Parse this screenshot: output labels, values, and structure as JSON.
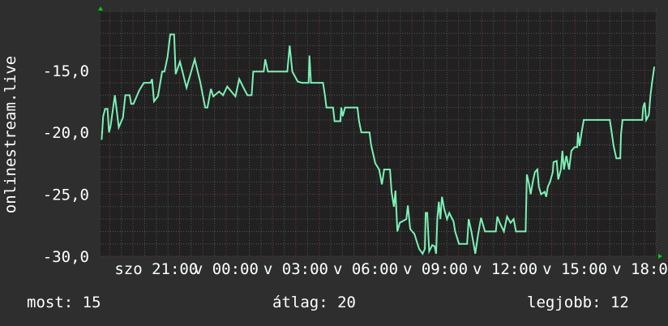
{
  "chart_data": {
    "type": "line",
    "title": "",
    "ylabel": "onlinestream.live",
    "xlabel": "",
    "ylim": [
      -30,
      -10.3
    ],
    "xlim": [
      "szo 18:36",
      "v 18:31"
    ],
    "yticks": [
      "-15,0",
      "-20,0",
      "-25,0",
      "-30,0"
    ],
    "ytick_values": [
      -15,
      -20,
      -25,
      -30
    ],
    "xticks": [
      "szo 21:00",
      "v 00:00",
      "v 03:00",
      "v 06:00",
      "v 09:00",
      "v 12:00",
      "v 15:00",
      "v 18:00"
    ],
    "grid": true,
    "colors": {
      "line": "#7cf0b6",
      "background": "#2e2e2e",
      "plot": "#212121",
      "grid_minor": "#555555",
      "grid_major": "#7a3a3a",
      "axis_arrow": "#00d000"
    },
    "series": [
      {
        "points": [
          [
            "szo 18:39",
            -20.6
          ],
          [
            "szo 18:43",
            -18.7
          ],
          [
            "szo 18:48",
            -18.1
          ],
          [
            "szo 18:54",
            -18.1
          ],
          [
            "szo 18:58",
            -20.0
          ],
          [
            "szo 19:02",
            -19.5
          ],
          [
            "szo 19:13",
            -17.0
          ],
          [
            "szo 19:23",
            -19.6
          ],
          [
            "szo 19:34",
            -18.8
          ],
          [
            "szo 19:40",
            -17.0
          ],
          [
            "szo 19:51",
            -17.0
          ],
          [
            "szo 19:55",
            -17.7
          ],
          [
            "szo 20:01",
            -17.7
          ],
          [
            "szo 20:16",
            -16.6
          ],
          [
            "szo 20:28",
            -16.0
          ],
          [
            "szo 20:45",
            -16.0
          ],
          [
            "szo 20:49",
            -15.7
          ],
          [
            "szo 20:54",
            -17.5
          ],
          [
            "szo 21:04",
            -17.1
          ],
          [
            "szo 21:15",
            -15.1
          ],
          [
            "szo 21:21",
            -15.1
          ],
          [
            "szo 21:29",
            -13.9
          ],
          [
            "szo 21:36",
            -12.1
          ],
          [
            "szo 21:46",
            -12.1
          ],
          [
            "szo 21:50",
            -15.3
          ],
          [
            "szo 22:01",
            -14.3
          ],
          [
            "szo 22:18",
            -16.4
          ],
          [
            "szo 22:39",
            -14.1
          ],
          [
            "szo 22:53",
            -15.9
          ],
          [
            "szo 23:06",
            -18.0
          ],
          [
            "szo 23:12",
            -18.0
          ],
          [
            "szo 23:21",
            -16.5
          ],
          [
            "szo 23:27",
            -17.1
          ],
          [
            "szo 23:42",
            -16.7
          ],
          [
            "szo 23:52",
            -17.0
          ],
          [
            "v 00:03",
            -16.3
          ],
          [
            "v 00:24",
            -17.1
          ],
          [
            "v 00:34",
            -15.7
          ],
          [
            "v 00:45",
            -16.4
          ],
          [
            "v 00:55",
            -17.0
          ],
          [
            "v 01:06",
            -17.0
          ],
          [
            "v 01:10",
            -15.1
          ],
          [
            "v 01:37",
            -15.1
          ],
          [
            "v 01:41",
            -14.1
          ],
          [
            "v 01:48",
            -15.1
          ],
          [
            "v 02:38",
            -15.1
          ],
          [
            "v 02:44",
            -13.0
          ],
          [
            "v 02:51",
            -15.1
          ],
          [
            "v 03:05",
            -15.9
          ],
          [
            "v 03:16",
            -16.0
          ],
          [
            "v 03:33",
            -16.0
          ],
          [
            "v 03:35",
            -13.8
          ],
          [
            "v 03:39",
            -16.0
          ],
          [
            "v 04:10",
            -16.0
          ],
          [
            "v 04:15",
            -17.0
          ],
          [
            "v 04:19",
            -18.0
          ],
          [
            "v 04:36",
            -18.0
          ],
          [
            "v 04:40",
            -19.1
          ],
          [
            "v 04:55",
            -19.1
          ],
          [
            "v 04:57",
            -18.0
          ],
          [
            "v 05:01",
            -18.7
          ],
          [
            "v 05:07",
            -18.0
          ],
          [
            "v 05:39",
            -18.0
          ],
          [
            "v 05:43",
            -19.1
          ],
          [
            "v 05:49",
            -20.0
          ],
          [
            "v 06:10",
            -20.0
          ],
          [
            "v 06:14",
            -21.0
          ],
          [
            "v 06:25",
            -22.5
          ],
          [
            "v 06:35",
            -23.0
          ],
          [
            "v 06:42",
            -24.2
          ],
          [
            "v 06:48",
            -23.0
          ],
          [
            "v 07:03",
            -23.0
          ],
          [
            "v 07:07",
            -24.8
          ],
          [
            "v 07:13",
            -26.0
          ],
          [
            "v 07:17",
            -24.7
          ],
          [
            "v 07:22",
            -28.0
          ],
          [
            "v 07:28",
            -27.3
          ],
          [
            "v 07:45",
            -27.0
          ],
          [
            "v 07:49",
            -25.9
          ],
          [
            "v 07:55",
            -27.8
          ],
          [
            "v 08:06",
            -28.2
          ],
          [
            "v 08:14",
            -29.0
          ],
          [
            "v 08:18",
            -29.4
          ],
          [
            "v 08:27",
            -29.8
          ],
          [
            "v 08:33",
            -29.4
          ],
          [
            "v 08:35",
            -26.5
          ],
          [
            "v 08:39",
            -26.5
          ],
          [
            "v 08:44",
            -29.6
          ],
          [
            "v 08:52",
            -29.1
          ],
          [
            "v 08:58",
            -29.2
          ],
          [
            "v 09:02",
            -29.8
          ],
          [
            "v 09:05",
            -27.0
          ],
          [
            "v 09:09",
            -25.6
          ],
          [
            "v 09:13",
            -27.0
          ],
          [
            "v 09:17",
            -25.2
          ],
          [
            "v 09:23",
            -26.2
          ],
          [
            "v 09:30",
            -27.0
          ],
          [
            "v 09:36",
            -26.5
          ],
          [
            "v 09:47",
            -27.2
          ],
          [
            "v 09:51",
            -28.0
          ],
          [
            "v 10:01",
            -29.0
          ],
          [
            "v 10:22",
            -29.0
          ],
          [
            "v 10:26",
            -27.0
          ],
          [
            "v 10:33",
            -28.0
          ],
          [
            "v 10:43",
            -29.8
          ],
          [
            "v 10:50",
            -28.3
          ],
          [
            "v 10:58",
            -26.9
          ],
          [
            "v 11:08",
            -28.0
          ],
          [
            "v 11:36",
            -28.0
          ],
          [
            "v 11:40",
            -26.8
          ],
          [
            "v 11:46",
            -27.3
          ],
          [
            "v 11:57",
            -28.0
          ],
          [
            "v 12:05",
            -26.8
          ],
          [
            "v 12:14",
            -27.3
          ],
          [
            "v 12:22",
            -27.0
          ],
          [
            "v 12:28",
            -28.0
          ],
          [
            "v 12:53",
            -28.0
          ],
          [
            "v 12:56",
            -23.4
          ],
          [
            "v 13:02",
            -24.2
          ],
          [
            "v 13:06",
            -25.0
          ],
          [
            "v 13:12",
            -23.9
          ],
          [
            "v 13:17",
            -23.2
          ],
          [
            "v 13:23",
            -23.0
          ],
          [
            "v 13:27",
            -24.4
          ],
          [
            "v 13:33",
            -25.0
          ],
          [
            "v 13:42",
            -24.8
          ],
          [
            "v 13:46",
            -25.2
          ],
          [
            "v 13:50",
            -24.4
          ],
          [
            "v 13:56",
            -24.0
          ],
          [
            "v 14:03",
            -23.2
          ],
          [
            "v 14:05",
            -22.4
          ],
          [
            "v 14:13",
            -22.3
          ],
          [
            "v 14:17",
            -23.8
          ],
          [
            "v 14:24",
            -23.0
          ],
          [
            "v 14:28",
            -21.5
          ],
          [
            "v 14:32",
            -23.0
          ],
          [
            "v 14:38",
            -21.9
          ],
          [
            "v 14:45",
            -23.0
          ],
          [
            "v 14:51",
            -21.5
          ],
          [
            "v 14:59",
            -21.2
          ],
          [
            "v 15:06",
            -21.2
          ],
          [
            "v 15:08",
            -20.0
          ],
          [
            "v 15:12",
            -21.1
          ],
          [
            "v 15:18",
            -19.9
          ],
          [
            "v 15:23",
            -19.0
          ],
          [
            "v 16:30",
            -19.0
          ],
          [
            "v 16:34",
            -19.8
          ],
          [
            "v 16:40",
            -21.1
          ],
          [
            "v 16:47",
            -22.1
          ],
          [
            "v 16:57",
            -22.1
          ],
          [
            "v 16:59",
            -20.2
          ],
          [
            "v 17:03",
            -19.0
          ],
          [
            "v 17:54",
            -19.0
          ],
          [
            "v 17:56",
            -18.0
          ],
          [
            "v 18:00",
            -17.6
          ],
          [
            "v 18:04",
            -19.0
          ],
          [
            "v 18:11",
            -18.6
          ],
          [
            "v 18:15",
            -17.0
          ],
          [
            "v 18:19",
            -16.0
          ],
          [
            "v 18:25",
            -14.7
          ]
        ]
      }
    ]
  },
  "footer": {
    "current": "most: 15",
    "average": "átlag: 20",
    "best": "legjobb: 12"
  }
}
